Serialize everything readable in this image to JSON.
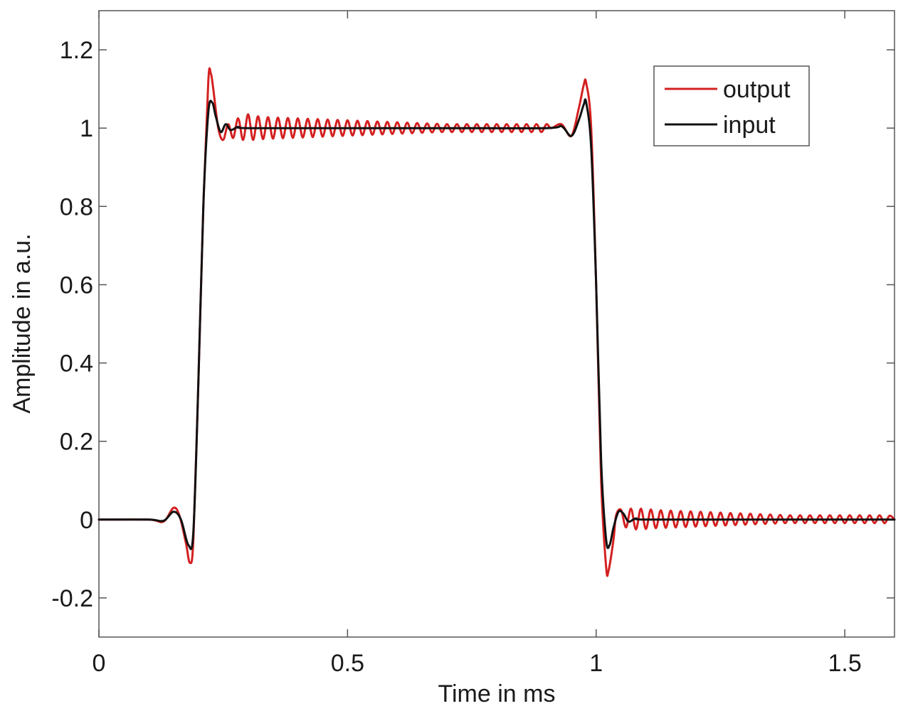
{
  "chart_data": {
    "type": "line",
    "xlabel": "Time in ms",
    "ylabel": "Amplitude in a.u.",
    "xlim": [
      0,
      1.6
    ],
    "ylim": [
      -0.3,
      1.3
    ],
    "xticks": [
      {
        "value": 0,
        "label": "0"
      },
      {
        "value": 0.5,
        "label": "0.5"
      },
      {
        "value": 1,
        "label": "1"
      },
      {
        "value": 1.5,
        "label": "1.5"
      }
    ],
    "yticks": [
      {
        "value": -0.2,
        "label": "-0.2"
      },
      {
        "value": 0,
        "label": "0"
      },
      {
        "value": 0.2,
        "label": "0.2"
      },
      {
        "value": 0.4,
        "label": "0.4"
      },
      {
        "value": 0.6,
        "label": "0.6"
      },
      {
        "value": 0.8,
        "label": "0.8"
      },
      {
        "value": 1,
        "label": "1"
      },
      {
        "value": 1.2,
        "label": "1.2"
      }
    ],
    "grid": false,
    "legend_position": "top-right",
    "series": [
      {
        "name": "output",
        "color": "#d42020",
        "points": [
          [
            0,
            0
          ],
          [
            0.1,
            0
          ],
          [
            0.13,
            -0.005
          ],
          [
            0.15,
            0.03
          ],
          [
            0.162,
            0.01
          ],
          [
            0.175,
            -0.06
          ],
          [
            0.183,
            -0.11
          ],
          [
            0.19,
            -0.05
          ],
          [
            0.2,
            0.35
          ],
          [
            0.21,
            0.8
          ],
          [
            0.22,
            1.12
          ],
          [
            0.225,
            1.14
          ],
          [
            0.23,
            1.1
          ],
          [
            0.24,
            1.0
          ],
          [
            0.25,
            0.97
          ],
          [
            0.26,
            1.01
          ],
          [
            0.27,
            0.975
          ],
          [
            0.28,
            1.025
          ],
          [
            0.29,
            0.97
          ],
          [
            0.3,
            1.035
          ],
          [
            0.31,
            0.97
          ],
          [
            0.32,
            1.03
          ],
          [
            0.33,
            0.972
          ],
          [
            0.34,
            1.028
          ],
          [
            0.35,
            0.973
          ],
          [
            0.36,
            1.027
          ],
          [
            0.37,
            0.974
          ],
          [
            0.38,
            1.026
          ],
          [
            0.39,
            0.975
          ],
          [
            0.4,
            1.025
          ],
          [
            0.41,
            0.976
          ],
          [
            0.42,
            1.024
          ],
          [
            0.43,
            0.977
          ],
          [
            0.44,
            1.023
          ],
          [
            0.45,
            0.978
          ],
          [
            0.46,
            1.022
          ],
          [
            0.47,
            0.979
          ],
          [
            0.48,
            1.021
          ],
          [
            0.49,
            0.98
          ],
          [
            0.5,
            1.02
          ],
          [
            0.51,
            0.981
          ],
          [
            0.52,
            1.019
          ],
          [
            0.53,
            0.982
          ],
          [
            0.54,
            1.018
          ],
          [
            0.55,
            0.983
          ],
          [
            0.56,
            1.017
          ],
          [
            0.57,
            0.984
          ],
          [
            0.58,
            1.016
          ],
          [
            0.59,
            0.985
          ],
          [
            0.6,
            1.015
          ],
          [
            0.61,
            0.986
          ],
          [
            0.62,
            1.014
          ],
          [
            0.63,
            0.987
          ],
          [
            0.64,
            1.013
          ],
          [
            0.65,
            0.988
          ],
          [
            0.66,
            1.012
          ],
          [
            0.67,
            0.989
          ],
          [
            0.68,
            1.011
          ],
          [
            0.69,
            0.99
          ],
          [
            0.7,
            1.01
          ],
          [
            0.71,
            0.99
          ],
          [
            0.72,
            1.01
          ],
          [
            0.73,
            0.99
          ],
          [
            0.74,
            1.01
          ],
          [
            0.75,
            0.99
          ],
          [
            0.76,
            1.01
          ],
          [
            0.77,
            0.99
          ],
          [
            0.78,
            1.01
          ],
          [
            0.79,
            0.99
          ],
          [
            0.8,
            1.01
          ],
          [
            0.81,
            0.99
          ],
          [
            0.82,
            1.01
          ],
          [
            0.83,
            0.99
          ],
          [
            0.84,
            1.01
          ],
          [
            0.85,
            0.99
          ],
          [
            0.86,
            1.01
          ],
          [
            0.87,
            0.99
          ],
          [
            0.88,
            1.01
          ],
          [
            0.89,
            0.99
          ],
          [
            0.9,
            1.01
          ],
          [
            0.91,
            1.0
          ],
          [
            0.93,
            1.01
          ],
          [
            0.95,
            0.98
          ],
          [
            0.965,
            1.05
          ],
          [
            0.975,
            1.11
          ],
          [
            0.98,
            1.115
          ],
          [
            0.99,
            1.0
          ],
          [
            1.0,
            0.6
          ],
          [
            1.01,
            0.1
          ],
          [
            1.02,
            -0.12
          ],
          [
            1.025,
            -0.13
          ],
          [
            1.035,
            -0.05
          ],
          [
            1.04,
            0.01
          ],
          [
            1.05,
            0.025
          ],
          [
            1.06,
            -0.02
          ],
          [
            1.07,
            0.028
          ],
          [
            1.08,
            -0.025
          ],
          [
            1.09,
            0.028
          ],
          [
            1.1,
            -0.024
          ],
          [
            1.11,
            0.026
          ],
          [
            1.12,
            -0.022
          ],
          [
            1.13,
            0.024
          ],
          [
            1.14,
            -0.021
          ],
          [
            1.15,
            0.023
          ],
          [
            1.16,
            -0.02
          ],
          [
            1.17,
            0.022
          ],
          [
            1.18,
            -0.019
          ],
          [
            1.19,
            0.021
          ],
          [
            1.2,
            -0.018
          ],
          [
            1.21,
            0.02
          ],
          [
            1.22,
            -0.017
          ],
          [
            1.23,
            0.019
          ],
          [
            1.24,
            -0.016
          ],
          [
            1.25,
            0.018
          ],
          [
            1.26,
            -0.015
          ],
          [
            1.27,
            0.017
          ],
          [
            1.28,
            -0.014
          ],
          [
            1.29,
            0.016
          ],
          [
            1.3,
            -0.013
          ],
          [
            1.31,
            0.015
          ],
          [
            1.32,
            -0.012
          ],
          [
            1.33,
            0.014
          ],
          [
            1.34,
            -0.011
          ],
          [
            1.35,
            0.013
          ],
          [
            1.36,
            -0.01
          ],
          [
            1.37,
            0.012
          ],
          [
            1.38,
            -0.009
          ],
          [
            1.39,
            0.011
          ],
          [
            1.4,
            -0.009
          ],
          [
            1.41,
            0.011
          ],
          [
            1.42,
            -0.009
          ],
          [
            1.43,
            0.011
          ],
          [
            1.44,
            -0.009
          ],
          [
            1.45,
            0.011
          ],
          [
            1.46,
            -0.009
          ],
          [
            1.47,
            0.011
          ],
          [
            1.48,
            -0.009
          ],
          [
            1.49,
            0.011
          ],
          [
            1.5,
            -0.009
          ],
          [
            1.51,
            0.011
          ],
          [
            1.52,
            -0.009
          ],
          [
            1.53,
            0.011
          ],
          [
            1.54,
            -0.009
          ],
          [
            1.55,
            0.011
          ],
          [
            1.56,
            -0.009
          ],
          [
            1.57,
            0.011
          ],
          [
            1.58,
            -0.009
          ],
          [
            1.59,
            0.01
          ],
          [
            1.6,
            0
          ]
        ]
      },
      {
        "name": "input",
        "color": "#111111",
        "points": [
          [
            0,
            0
          ],
          [
            0.1,
            0
          ],
          [
            0.13,
            -0.003
          ],
          [
            0.15,
            0.02
          ],
          [
            0.165,
            0.0
          ],
          [
            0.18,
            -0.065
          ],
          [
            0.19,
            -0.03
          ],
          [
            0.2,
            0.35
          ],
          [
            0.21,
            0.8
          ],
          [
            0.22,
            1.04
          ],
          [
            0.228,
            1.065
          ],
          [
            0.235,
            1.03
          ],
          [
            0.245,
            0.99
          ],
          [
            0.255,
            1.01
          ],
          [
            0.265,
            0.995
          ],
          [
            0.28,
            1.003
          ],
          [
            0.3,
            1.0
          ],
          [
            0.5,
            1.0
          ],
          [
            0.7,
            1.0
          ],
          [
            0.9,
            1.0
          ],
          [
            0.93,
            1.005
          ],
          [
            0.95,
            0.98
          ],
          [
            0.965,
            1.02
          ],
          [
            0.975,
            1.06
          ],
          [
            0.98,
            1.065
          ],
          [
            0.99,
            0.95
          ],
          [
            1.0,
            0.6
          ],
          [
            1.01,
            0.15
          ],
          [
            1.02,
            -0.05
          ],
          [
            1.027,
            -0.065
          ],
          [
            1.035,
            -0.02
          ],
          [
            1.045,
            0.02
          ],
          [
            1.055,
            0.015
          ],
          [
            1.065,
            -0.005
          ],
          [
            1.08,
            0.003
          ],
          [
            1.1,
            0
          ],
          [
            1.3,
            0
          ],
          [
            1.6,
            0
          ]
        ]
      }
    ]
  }
}
